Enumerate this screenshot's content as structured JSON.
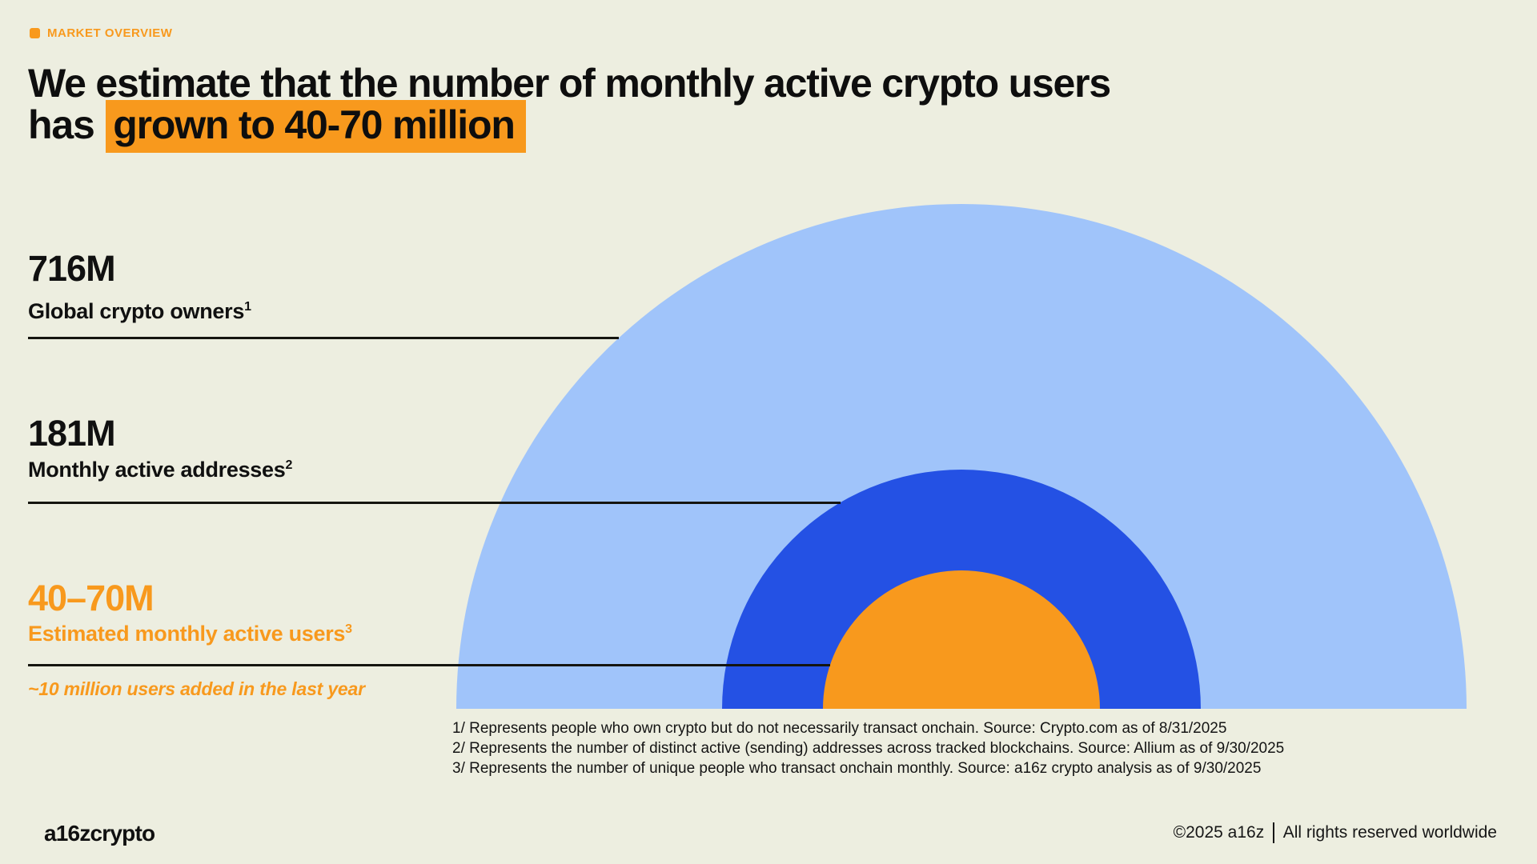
{
  "header": {
    "eyebrow": "MARKET OVERVIEW",
    "title_line1": "We estimate that the number of monthly active crypto users",
    "title_line2_prefix": "has ",
    "title_line2_highlight": "grown to 40-70 million"
  },
  "chart_data": {
    "type": "area",
    "subtype": "nested-proportional-semicircles",
    "title": "We estimate that the number of monthly active crypto users has grown to 40-70 million",
    "legend_position": "left-leader-lines",
    "grid": false,
    "series": [
      {
        "label": "Global crypto owners",
        "footnote_mark": "1",
        "value_label": "716M",
        "value_millions": 716,
        "color": "#A0C4FA"
      },
      {
        "label": "Monthly active addresses",
        "footnote_mark": "2",
        "value_label": "181M",
        "value_millions": 181,
        "color": "#2451E4"
      },
      {
        "label": "Estimated monthly active users",
        "footnote_mark": "3",
        "value_label": "40–70M",
        "value_millions_min": 40,
        "value_millions_max": 70,
        "color": "#F8991D"
      }
    ],
    "annotation": "~10 million users added in the last year"
  },
  "footnotes": [
    "1/ Represents people who own crypto but do not necessarily transact onchain. Source: Crypto.com as of 8/31/2025",
    "2/ Represents the number of distinct active (sending) addresses across tracked blockchains. Source: Allium as of 9/30/2025",
    "3/ Represents the number of unique people who transact onchain monthly. Source: a16z crypto analysis as of 9/30/2025"
  ],
  "footer": {
    "logo": "a16zcrypto",
    "copyright_left": "©2025 a16z",
    "copyright_right": "All rights reserved worldwide"
  },
  "colors": {
    "background": "#EDEEE0",
    "text": "#111111",
    "accent_orange": "#F8991D",
    "light_blue": "#A0C4FA",
    "dark_blue": "#2451E4"
  }
}
